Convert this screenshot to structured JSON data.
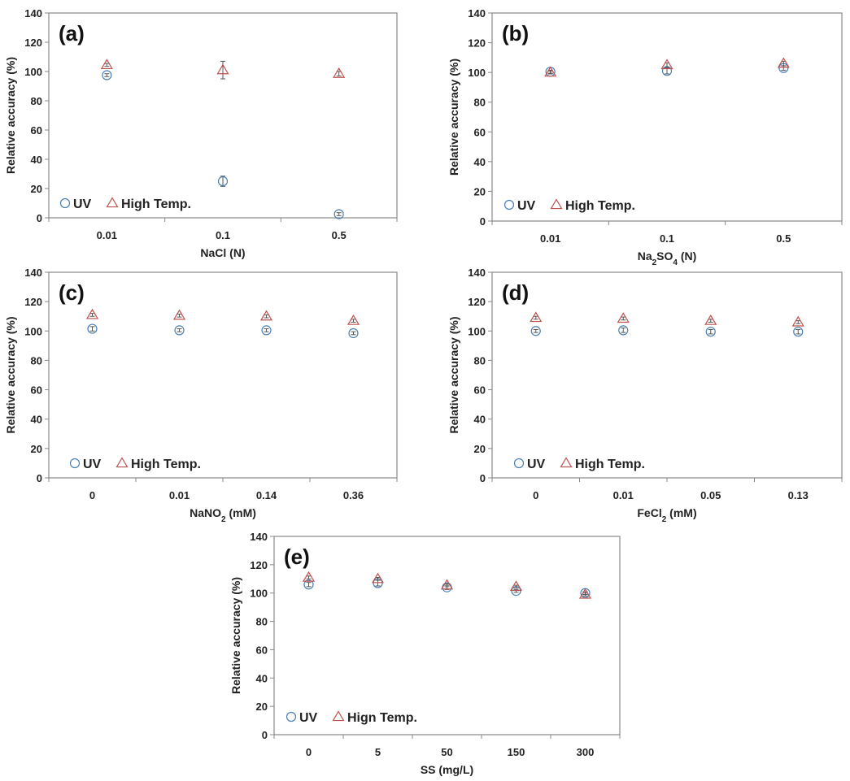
{
  "colors": {
    "uv": "#4a7fb5",
    "high_temp": "#c0504d",
    "axis": "#888888"
  },
  "chart_data": [
    {
      "type": "scatter",
      "panel": "(a)",
      "categories": [
        "0.01",
        "0.1",
        "0.5"
      ],
      "xlabel": [
        {
          "t": "NaCl (N)",
          "sub": false
        }
      ],
      "ylabel": "Relative accuracy (%)",
      "ylim": [
        0,
        140
      ],
      "yticks": [
        0,
        20,
        40,
        60,
        80,
        100,
        120,
        140
      ],
      "legend": [
        "UV",
        "High Temp."
      ],
      "series": [
        {
          "name": "UV",
          "marker": "circle",
          "values": [
            97.5,
            25,
            2.5
          ],
          "errors": [
            1,
            3.5,
            1
          ]
        },
        {
          "name": "High Temp.",
          "marker": "triangle",
          "values": [
            104.5,
            101,
            98.5
          ],
          "errors": [
            1,
            6,
            1.5
          ]
        }
      ]
    },
    {
      "type": "scatter",
      "panel": "(b)",
      "categories": [
        "0.01",
        "0.1",
        "0.5"
      ],
      "xlabel": [
        {
          "t": "Na",
          "sub": false
        },
        {
          "t": "2",
          "sub": true
        },
        {
          "t": "SO",
          "sub": false
        },
        {
          "t": "4",
          "sub": true
        },
        {
          "t": " (N)",
          "sub": false
        }
      ],
      "ylabel": "Relative accuracy (%)",
      "ylim": [
        0,
        140
      ],
      "yticks": [
        0,
        20,
        40,
        60,
        80,
        100,
        120,
        140
      ],
      "legend": [
        "UV",
        "High Temp."
      ],
      "series": [
        {
          "name": "UV",
          "marker": "circle",
          "values": [
            100.5,
            101,
            103
          ],
          "errors": [
            1,
            2,
            1.5
          ]
        },
        {
          "name": "High Temp.",
          "marker": "triangle",
          "values": [
            100,
            105,
            106
          ],
          "errors": [
            1,
            1.5,
            1.5
          ]
        }
      ]
    },
    {
      "type": "scatter",
      "panel": "(c)",
      "categories": [
        "0",
        "0.01",
        "0.14",
        "0.36"
      ],
      "xlabel": [
        {
          "t": "NaNO",
          "sub": false
        },
        {
          "t": "2",
          "sub": true
        },
        {
          "t": " (mM)",
          "sub": false
        }
      ],
      "ylabel": "Relative accuracy (%)",
      "ylim": [
        0,
        140
      ],
      "yticks": [
        0,
        20,
        40,
        60,
        80,
        100,
        120,
        140
      ],
      "legend": [
        "UV",
        "High Temp."
      ],
      "series": [
        {
          "name": "UV",
          "marker": "circle",
          "values": [
            101.5,
            100.5,
            100.5,
            98.5
          ],
          "errors": [
            1.5,
            1,
            1,
            1
          ]
        },
        {
          "name": "High Temp.",
          "marker": "triangle",
          "values": [
            111,
            110.5,
            110,
            107
          ],
          "errors": [
            1,
            1,
            1,
            1
          ]
        }
      ]
    },
    {
      "type": "scatter",
      "panel": "(d)",
      "categories": [
        "0",
        "0.01",
        "0.05",
        "0.13"
      ],
      "xlabel": [
        {
          "t": "FeCl",
          "sub": false
        },
        {
          "t": "2",
          "sub": true
        },
        {
          "t": " (mM)",
          "sub": false
        }
      ],
      "ylabel": "Relative accuracy (%)",
      "ylim": [
        0,
        140
      ],
      "yticks": [
        0,
        20,
        40,
        60,
        80,
        100,
        120,
        140
      ],
      "legend": [
        "UV",
        "High Temp."
      ],
      "series": [
        {
          "name": "UV",
          "marker": "circle",
          "values": [
            100,
            100.5,
            99.5,
            99.5
          ],
          "errors": [
            1,
            1.5,
            1.5,
            1.5
          ]
        },
        {
          "name": "High Temp.",
          "marker": "triangle",
          "values": [
            109,
            108.5,
            107,
            106
          ],
          "errors": [
            1,
            1,
            1,
            1
          ]
        }
      ]
    },
    {
      "type": "scatter",
      "panel": "(e)",
      "categories": [
        "0",
        "5",
        "50",
        "150",
        "300"
      ],
      "xlabel": [
        {
          "t": "SS (mg/L)",
          "sub": false
        }
      ],
      "ylabel": "Relative accuracy (%)",
      "ylim": [
        0,
        140
      ],
      "yticks": [
        0,
        20,
        40,
        60,
        80,
        100,
        120,
        140
      ],
      "legend": [
        "UV",
        "Hign Temp."
      ],
      "series": [
        {
          "name": "UV",
          "marker": "circle",
          "values": [
            106,
            107,
            104,
            101.5,
            100
          ],
          "errors": [
            1.5,
            2,
            1.5,
            1,
            1
          ]
        },
        {
          "name": "Hign Temp.",
          "marker": "triangle",
          "values": [
            111,
            110,
            105.5,
            104.5,
            99
          ],
          "errors": [
            1,
            1,
            1,
            1,
            1
          ]
        }
      ]
    }
  ]
}
